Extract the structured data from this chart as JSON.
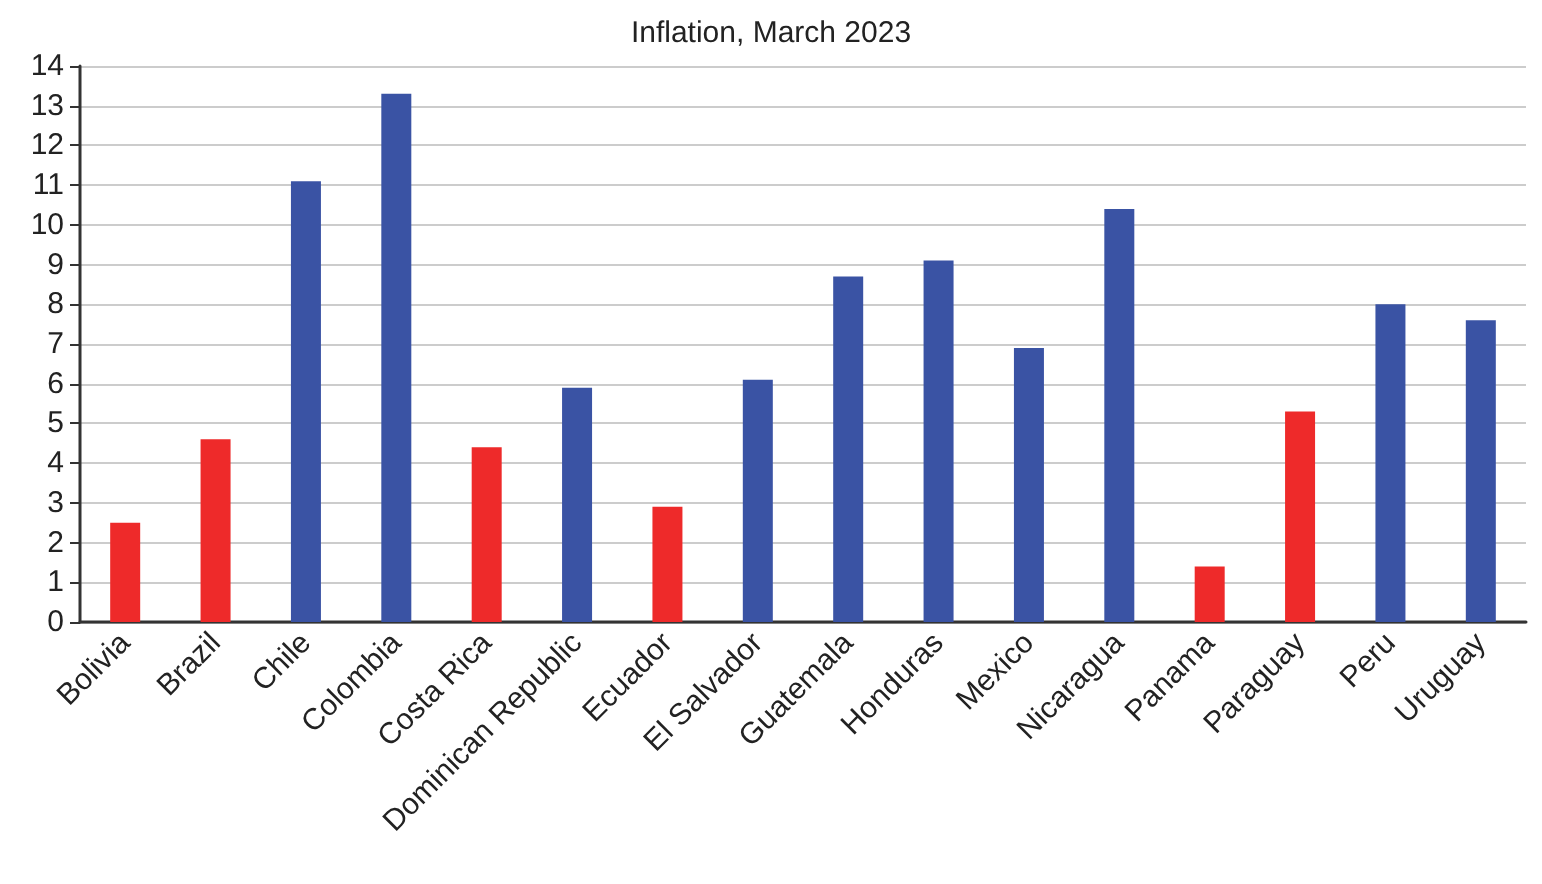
{
  "chart_data": {
    "type": "bar",
    "title": "Inflation, March 2023",
    "categories": [
      "Bolivia",
      "Brazil",
      "Chile",
      "Colombia",
      "Costa Rica",
      "Dominican Republic",
      "Ecuador",
      "El Salvador",
      "Guatemala",
      "Honduras",
      "Mexico",
      "Nicaragua",
      "Panama",
      "Paraguay",
      "Peru",
      "Uruguay"
    ],
    "values": [
      2.5,
      4.6,
      11.1,
      13.3,
      4.4,
      5.9,
      2.9,
      6.1,
      8.7,
      9.1,
      6.9,
      10.4,
      1.4,
      5.3,
      8.0,
      7.6
    ],
    "colors": [
      "#ee2a2a",
      "#ee2a2a",
      "#3a53a4",
      "#3a53a4",
      "#ee2a2a",
      "#3a53a4",
      "#ee2a2a",
      "#3a53a4",
      "#3a53a4",
      "#3a53a4",
      "#3a53a4",
      "#3a53a4",
      "#ee2a2a",
      "#ee2a2a",
      "#3a53a4",
      "#3a53a4"
    ],
    "ylim": [
      0,
      14
    ],
    "yticks": [
      0,
      1,
      2,
      3,
      4,
      5,
      6,
      7,
      8,
      9,
      10,
      11,
      12,
      13,
      14
    ],
    "grid": "y"
  }
}
